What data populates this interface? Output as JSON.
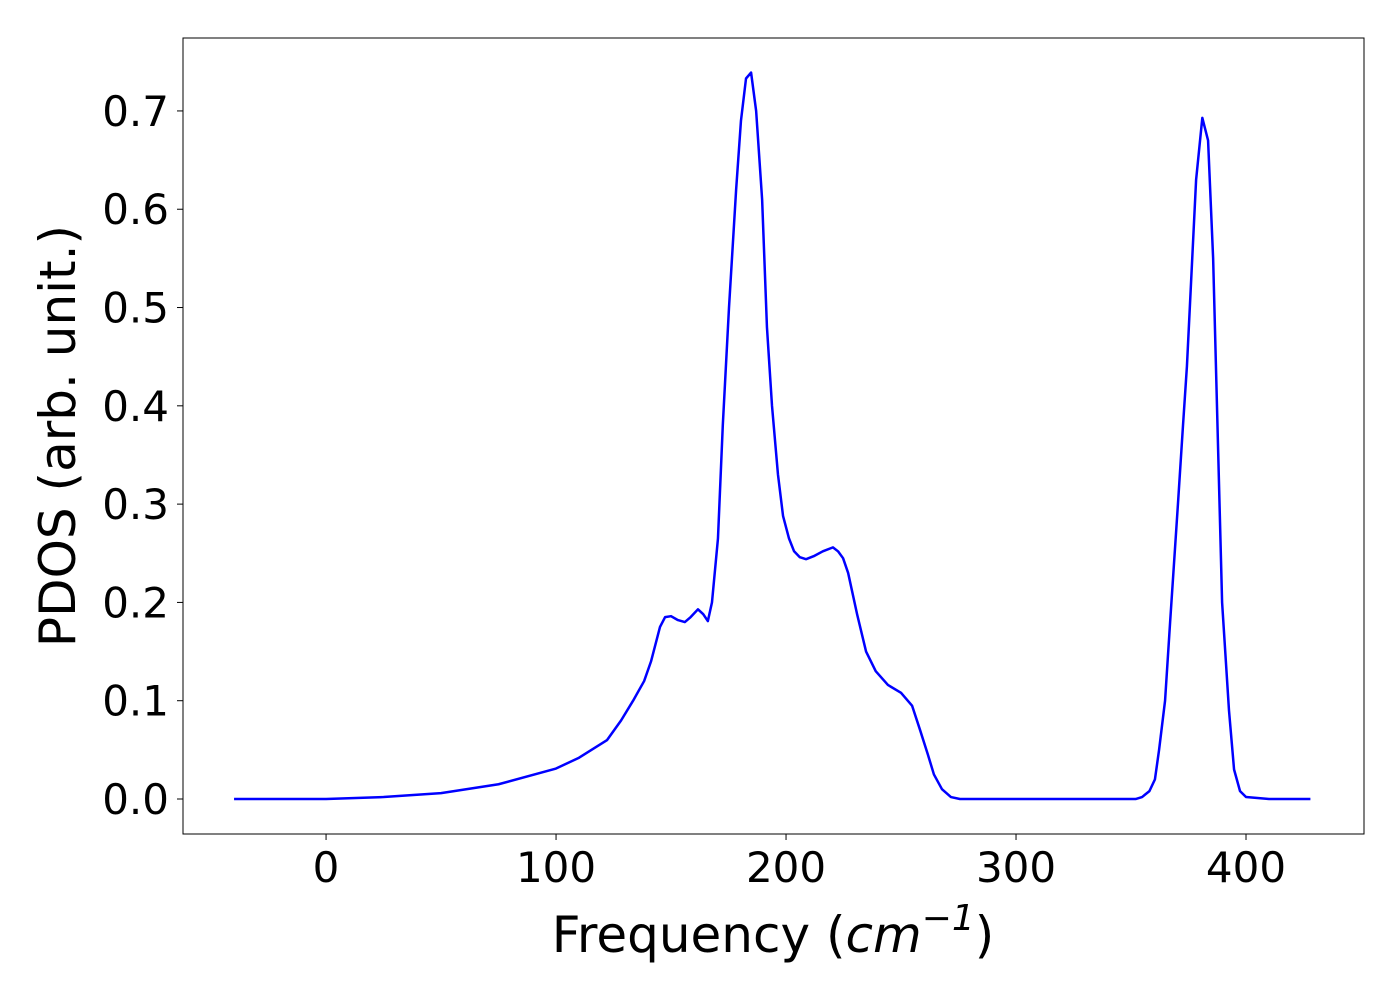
{
  "chart_data": {
    "type": "line",
    "xlabel": [
      "Frequency (",
      "cm",
      "−1",
      ")"
    ],
    "ylabel": "PDOS (arb. unit.)",
    "series": [
      {
        "color": "#0000ff",
        "x": [
          -40,
          -20,
          0,
          25,
          50,
          75,
          100,
          110,
          122.2,
          128.3,
          133.5,
          138.3,
          141.3,
          145.2,
          147.4,
          150,
          153,
          156,
          158.5,
          161.7,
          164,
          166,
          167.8,
          170.4,
          172.5,
          175.2,
          178.3,
          180.4,
          182.6,
          184.8,
          187,
          189.6,
          191.7,
          193.9,
          196.5,
          198.7,
          201.3,
          203.5,
          206,
          208.7,
          212,
          216,
          220.4,
          222.6,
          224.8,
          227,
          230.9,
          234.8,
          239,
          244.3,
          250,
          254.8,
          258.3,
          261.7,
          264.3,
          267.8,
          271.7,
          275.6,
          300,
          330,
          352,
          354.8,
          358,
          360.4,
          362.2,
          364.8,
          367,
          370.4,
          372.6,
          374.3,
          378.3,
          381,
          383.5,
          385.7,
          389.6,
          392.6,
          394.8,
          397.4,
          400,
          410,
          428
        ],
        "values": [
          0,
          0,
          0,
          0.002,
          0.006,
          0.015,
          0.031,
          0.042,
          0.06,
          0.08,
          0.1,
          0.12,
          0.14,
          0.175,
          0.185,
          0.186,
          0.182,
          0.18,
          0.185,
          0.193,
          0.188,
          0.181,
          0.2,
          0.265,
          0.38,
          0.5,
          0.62,
          0.69,
          0.733,
          0.739,
          0.7,
          0.61,
          0.48,
          0.4,
          0.33,
          0.288,
          0.265,
          0.252,
          0.246,
          0.244,
          0.247,
          0.252,
          0.256,
          0.252,
          0.245,
          0.23,
          0.188,
          0.15,
          0.13,
          0.116,
          0.108,
          0.095,
          0.07,
          0.045,
          0.025,
          0.01,
          0.002,
          0,
          0,
          0,
          0,
          0.002,
          0.008,
          0.02,
          0.05,
          0.1,
          0.18,
          0.3,
          0.38,
          0.44,
          0.63,
          0.693,
          0.67,
          0.55,
          0.2,
          0.09,
          0.03,
          0.008,
          0.002,
          0,
          0
        ]
      }
    ],
    "xlim": [
      -62.2,
      451.3
    ],
    "xticks": [
      0,
      100,
      200,
      300,
      400
    ],
    "ylim": [
      -0.0356,
      0.7742
    ],
    "yticks": [
      {
        "value": 0,
        "label": "0.0"
      },
      0.1,
      0.2,
      0.3,
      0.4,
      0.5,
      0.6,
      0.7
    ],
    "grid": false
  }
}
